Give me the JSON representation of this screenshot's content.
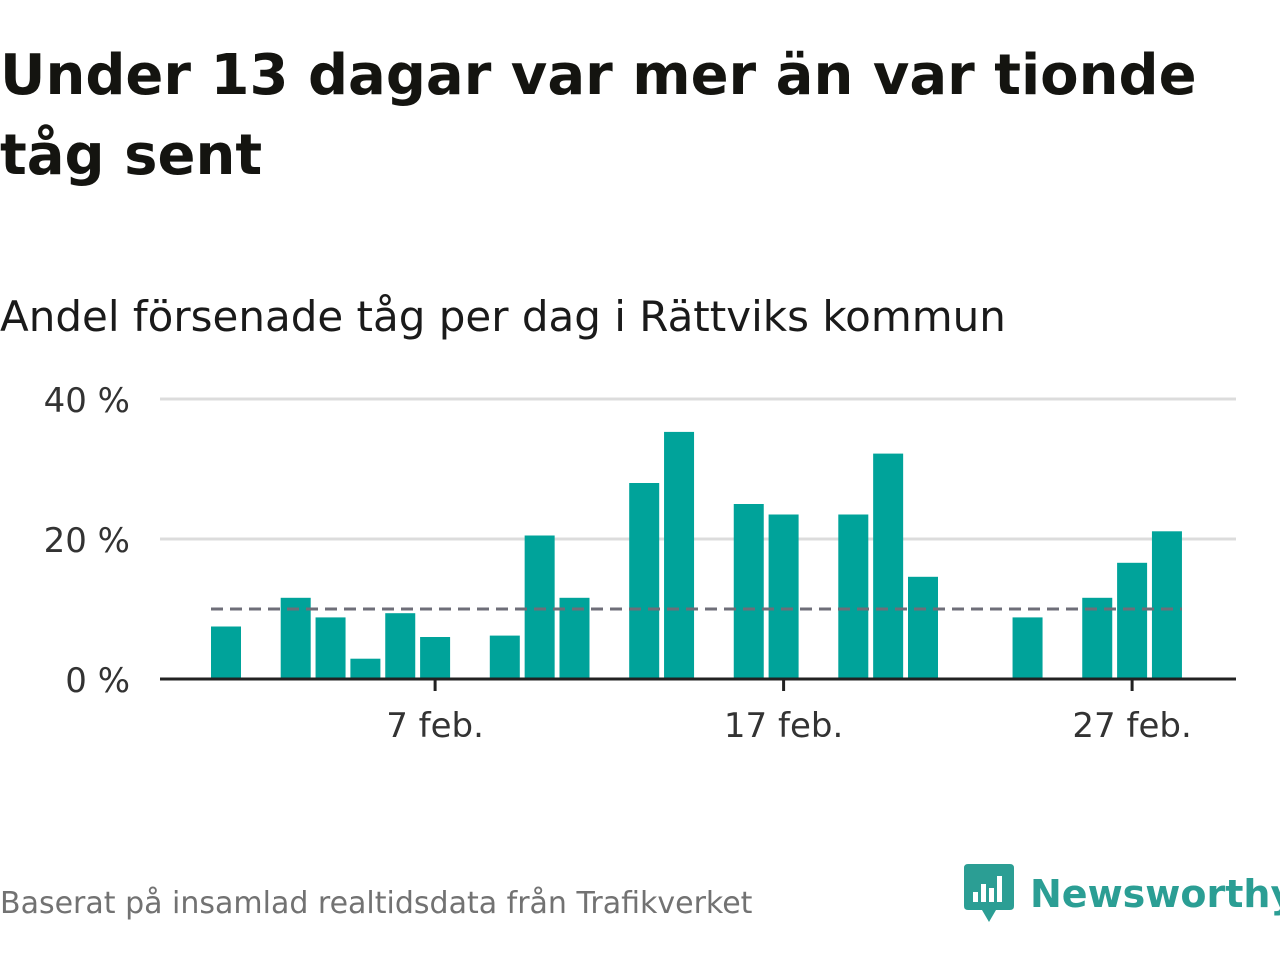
{
  "title": "Under 13 dagar var mer än var tionde tåg sent",
  "subtitle": "Andel försenade tåg per dag i Rättviks kommun",
  "footer": {
    "source": "Baserat på insamlad realtidsdata från Trafikverket",
    "brand": "Newsworthy"
  },
  "colors": {
    "bar": "#00a39a",
    "reference_line": "#6e6e78",
    "grid": "#dcdcdc",
    "axis": "#222222",
    "brand": "#2b9e94"
  },
  "chart_data": {
    "type": "bar",
    "title": "Andel försenade tåg per dag i Rättviks kommun",
    "xlabel": "",
    "ylabel": "",
    "x_axis": "date",
    "x_ticks": [
      "7 feb.",
      "17 feb.",
      "27 feb."
    ],
    "y_ticks": [
      "0 %",
      "20 %",
      "40 %"
    ],
    "ylim": [
      0,
      40
    ],
    "grid": true,
    "legend": "none",
    "reference_line": {
      "value": 10,
      "style": "dashed"
    },
    "categories": [
      "1 feb.",
      "2 feb.",
      "3 feb.",
      "4 feb.",
      "5 feb.",
      "6 feb.",
      "7 feb.",
      "8 feb.",
      "9 feb.",
      "10 feb.",
      "11 feb.",
      "12 feb.",
      "13 feb.",
      "14 feb.",
      "15 feb.",
      "16 feb.",
      "17 feb.",
      "18 feb.",
      "19 feb.",
      "20 feb.",
      "21 feb.",
      "22 feb.",
      "23 feb.",
      "24 feb.",
      "25 feb.",
      "26 feb.",
      "27 feb.",
      "28 feb."
    ],
    "values": [
      7.5,
      null,
      11.6,
      8.8,
      2.9,
      9.4,
      6.0,
      null,
      6.2,
      20.5,
      11.6,
      null,
      28.0,
      35.3,
      null,
      25.0,
      23.5,
      null,
      23.5,
      32.2,
      14.6,
      null,
      null,
      8.8,
      null,
      11.6,
      16.6,
      21.1
    ]
  }
}
